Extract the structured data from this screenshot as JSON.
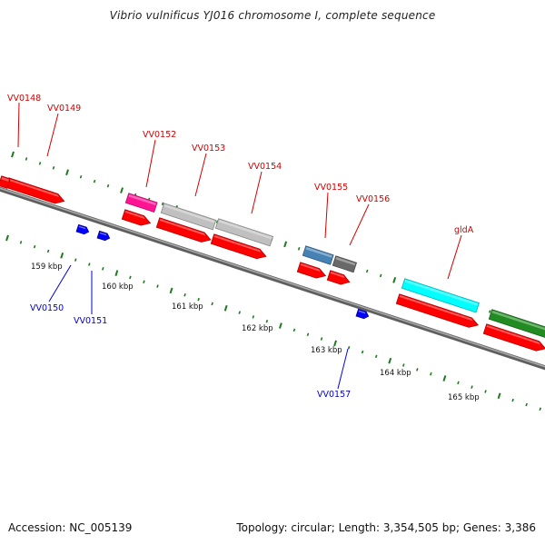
{
  "title": "Vibrio vulnificus YJ016 chromosome I, complete sequence",
  "footer": {
    "accession": "Accession: NC_005139",
    "topology": "Topology: circular",
    "length": "Length: 3,354,505 bp",
    "genes": "Genes: 3,386"
  },
  "colors": {
    "forward_label": "#d40000",
    "reverse_label": "#0000d4",
    "tick": "#1f7a1f",
    "backbone": "#7f7f7f"
  },
  "scale_labels": [
    "159 kbp",
    "160 kbp",
    "161 kbp",
    "162 kbp",
    "163 kbp",
    "164 kbp",
    "165 kbp"
  ],
  "forward_gene_labels": [
    "VV0148",
    "VV0149",
    "VV0152",
    "VV0153",
    "VV0154",
    "VV0155",
    "VV0156",
    "gldA"
  ],
  "reverse_gene_labels": [
    "VV0150",
    "VV0151",
    "VV0157"
  ],
  "feature_colors": {
    "cds": "#ff0000",
    "vv0152_feature": "#ff1493",
    "vv0153_feature": "#c0c0c0",
    "vv0154_feature": "#c0c0c0",
    "vv0155_feature": "#4682b4",
    "vv0156_feature": "#696969",
    "glda_feature": "#00ffff",
    "downstream_feature": "#228b22",
    "reverse_marker": "#0000ff"
  }
}
